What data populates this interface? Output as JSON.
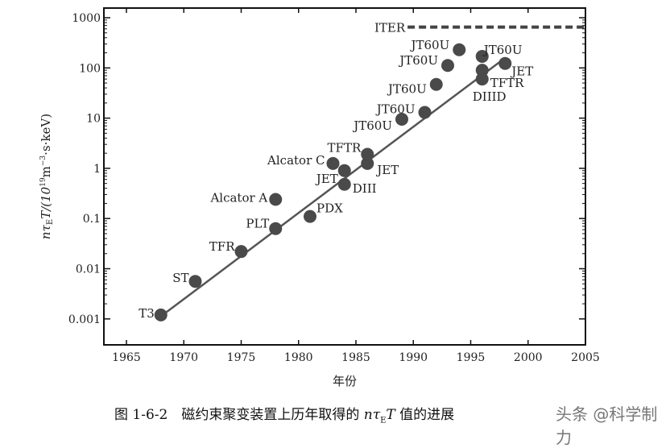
{
  "chart_data": {
    "type": "scatter",
    "title": "",
    "xlabel": "年份",
    "ylabel": "nτ_E T/(10^19 m^-3·s·keV)",
    "ylabel_parts": {
      "main": "nτ",
      "sub": "E",
      "t": "T/(10",
      "sup1": "19",
      "m": "m",
      "sup2": "−3",
      "rest": "·s·keV)"
    },
    "xlim": [
      1963,
      2005
    ],
    "ylim": [
      0.0005,
      1500
    ],
    "yscale": "log",
    "xticks": [
      "1965",
      "1970",
      "1975",
      "1980",
      "1985",
      "1990",
      "1995",
      "2000",
      "2005"
    ],
    "yticks": [
      "0.001",
      "0.01",
      "0.1",
      "1",
      "10",
      "100",
      "1000"
    ],
    "grid": false,
    "point_color": "#4a4a4a",
    "points": [
      {
        "label": "T3",
        "x": 1968,
        "y": 0.0012
      },
      {
        "label": "ST",
        "x": 1971,
        "y": 0.0056
      },
      {
        "label": "TFR",
        "x": 1975,
        "y": 0.022
      },
      {
        "label": "PLT",
        "x": 1978,
        "y": 0.063
      },
      {
        "label": "Alcator A",
        "x": 1978,
        "y": 0.24
      },
      {
        "label": "PDX",
        "x": 1981,
        "y": 0.11
      },
      {
        "label": "Alcator C",
        "x": 1983,
        "y": 1.25
      },
      {
        "label": "JET",
        "x": 1984,
        "y": 0.9
      },
      {
        "label": "DIII",
        "x": 1984,
        "y": 0.48
      },
      {
        "label": "TFTR",
        "x": 1986,
        "y": 1.9
      },
      {
        "label": "JET",
        "x": 1986,
        "y": 1.25
      },
      {
        "label": "JT60U",
        "x": 1989,
        "y": 9.5
      },
      {
        "label": "JT60U",
        "x": 1991,
        "y": 13
      },
      {
        "label": "JT60U",
        "x": 1992,
        "y": 47
      },
      {
        "label": "JT60U",
        "x": 1993,
        "y": 112
      },
      {
        "label": "JT60U",
        "x": 1994,
        "y": 230
      },
      {
        "label": "JT60U",
        "x": 1996,
        "y": 170
      },
      {
        "label": "TFTR",
        "x": 1996,
        "y": 90
      },
      {
        "label": "DIIID",
        "x": 1996,
        "y": 60
      },
      {
        "label": "JET",
        "x": 1998,
        "y": 123
      }
    ],
    "trend_line": [
      {
        "x": 1967.7,
        "y": 0.001
      },
      {
        "x": 1997.5,
        "y": 130
      }
    ],
    "iter_line": {
      "label": "ITER",
      "x_start": 1989.5,
      "x_end": 2005,
      "y": 650
    }
  },
  "caption": {
    "prefix": "图 1-6-2　磁约束聚变装置上历年取得的 ",
    "math_n": "nτ",
    "math_sub": "E",
    "math_T": "T",
    "suffix": " 值的进展"
  },
  "watermark": "头条 @科学制力"
}
